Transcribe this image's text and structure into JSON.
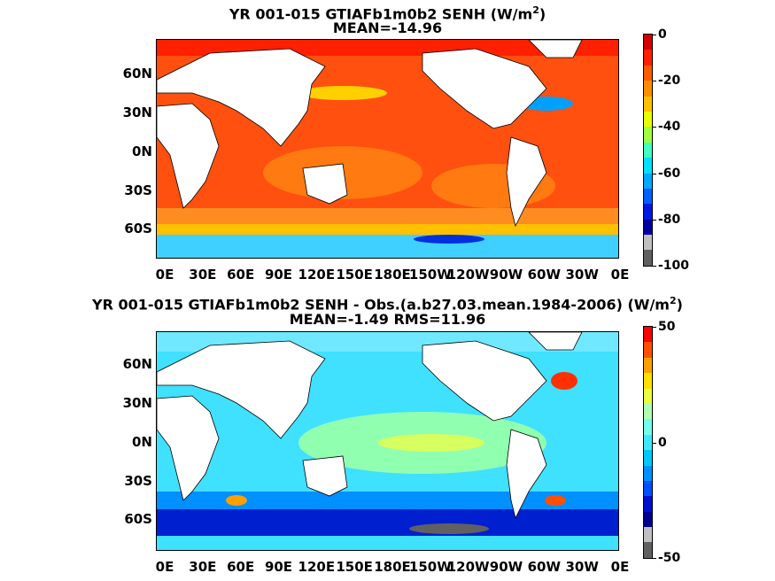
{
  "panels": [
    {
      "title_line1": "YR 001-015 GTIAFb1m0b2  SENH (W/m",
      "title_sup": "2",
      "title_close": ")",
      "title_line2": "MEAN=-14.96",
      "colorbar_ticks": [
        "0",
        "-20",
        "-40",
        "-60",
        "-80",
        "-100"
      ],
      "colorbar_colors": [
        "#d40000",
        "#ff2000",
        "#ff5a00",
        "#ff8c00",
        "#ffc000",
        "#e8ff00",
        "#a0ff40",
        "#40ffc0",
        "#00e0ff",
        "#00a8ff",
        "#0060ff",
        "#0018e0",
        "#0000a0",
        "#c0c0c0",
        "#606060"
      ],
      "ocean_base": "#ff5010"
    },
    {
      "title_line1": "YR 001-015 GTIAFb1m0b2 SENH - Obs.(a.b27.03.mean.1984-2006) (W/m",
      "title_sup": "2",
      "title_close": ")",
      "title_line2": "MEAN=-1.49 RMS=11.96",
      "colorbar_ticks": [
        "50",
        "0",
        "-50"
      ],
      "colorbar_colors": [
        "#ff0000",
        "#ff5000",
        "#ffa000",
        "#ffe000",
        "#e8ff40",
        "#b0ffb0",
        "#70ffe8",
        "#40e8ff",
        "#00c8ff",
        "#0090ff",
        "#0050ff",
        "#0010d0",
        "#000090",
        "#c0c0c0",
        "#606060"
      ],
      "ocean_base": "#40e0ff"
    }
  ],
  "lat_labels": [
    "60N",
    "30N",
    "0N",
    "30S",
    "60S"
  ],
  "lon_labels": [
    "0E",
    "30E",
    "60E",
    "90E",
    "120E",
    "150E",
    "180E",
    "150W",
    "120W",
    "90W",
    "60W",
    "30W",
    "0E"
  ]
}
